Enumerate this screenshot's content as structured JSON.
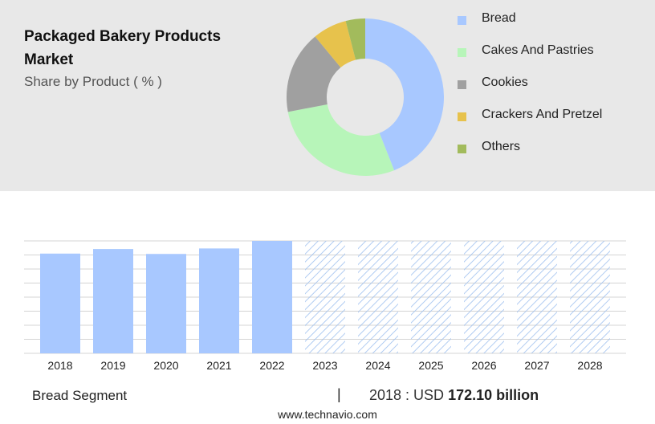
{
  "header": {
    "title": "Packaged Bakery Products Market",
    "subtitle": "Share by Product ( % )"
  },
  "footer": {
    "segment_label": "Bread Segment",
    "separator": "|",
    "year_value_prefix": "2018 : USD",
    "year_value": "172.10 billion",
    "website": "www.technavio.com"
  },
  "chart_data": [
    {
      "type": "pie",
      "title": "",
      "donut": true,
      "legend_position": "right",
      "categories": [
        "Bread",
        "Cakes And Pastries",
        "Cookies",
        "Crackers And Pretzel",
        "Others"
      ],
      "values": [
        44,
        28,
        17,
        7,
        4
      ],
      "colors": [
        "#a8c8ff",
        "#b7f5b9",
        "#a0a0a0",
        "#e7c24c",
        "#a2bb5c"
      ]
    },
    {
      "type": "bar",
      "title": "",
      "xlabel": "",
      "ylabel": "",
      "grid": true,
      "categories": [
        "2018",
        "2019",
        "2020",
        "2021",
        "2022",
        "2023",
        "2024",
        "2025",
        "2026",
        "2027",
        "2028"
      ],
      "values": [
        172.1,
        180,
        171.5,
        181,
        194,
        null,
        null,
        null,
        null,
        null,
        null
      ],
      "forecast_years": [
        "2023",
        "2024",
        "2025",
        "2026",
        "2027",
        "2028"
      ],
      "ylim": [
        0,
        194
      ],
      "colors": {
        "bar": "#a8c8ff",
        "forecast_hatch": "#9ec0ef"
      }
    }
  ]
}
